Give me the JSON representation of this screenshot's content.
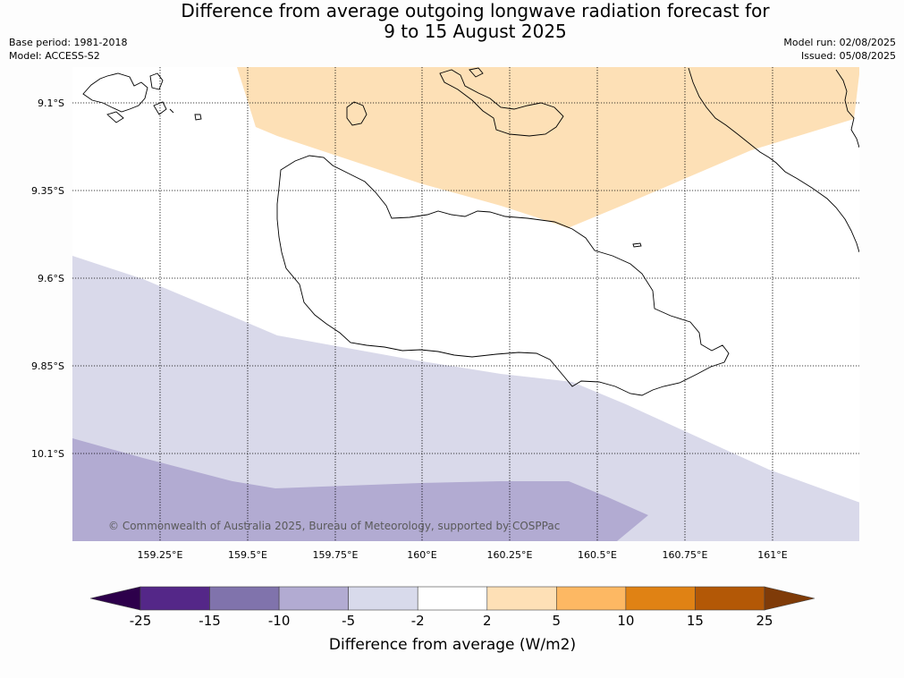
{
  "title": {
    "line1": "Difference from average outgoing longwave radiation forecast for",
    "line2": "9 to 15 August 2025"
  },
  "meta": {
    "base_period": "Base period: 1981-2018",
    "model": "Model: ACCESS-S2",
    "model_run": "Model run: 02/08/2025",
    "issued": "Issued: 05/08/2025"
  },
  "map": {
    "lat_ticks": [
      "9.1°S",
      "9.35°S",
      "9.6°S",
      "9.85°S",
      "10.1°S"
    ],
    "lon_ticks": [
      "159.25°E",
      "159.5°E",
      "159.75°E",
      "160°E",
      "160.25°E",
      "160.5°E",
      "160.75°E",
      "161°E"
    ],
    "copyright": "© Commonwealth of Australia 2025, Bureau of Meteorology, supported by COSPPac",
    "shade_colors": {
      "positive_2_5": "#fde0b6",
      "negative_5_2": "#d9d9ea",
      "negative_10_5": "#b2abd2"
    },
    "coastline_color": "#000000"
  },
  "colorbar": {
    "title": "Difference from average (W/m2)",
    "boundary_labels": [
      "-25",
      "-15",
      "-10",
      "-5",
      "-2",
      "2",
      "5",
      "10",
      "15",
      "25"
    ],
    "colors": [
      "#2d004b",
      "#542788",
      "#8073ac",
      "#b2abd2",
      "#d8daeb",
      "#ffffff",
      "#fee0b6",
      "#fdb863",
      "#e08214",
      "#b35806",
      "#7f3b08"
    ]
  }
}
